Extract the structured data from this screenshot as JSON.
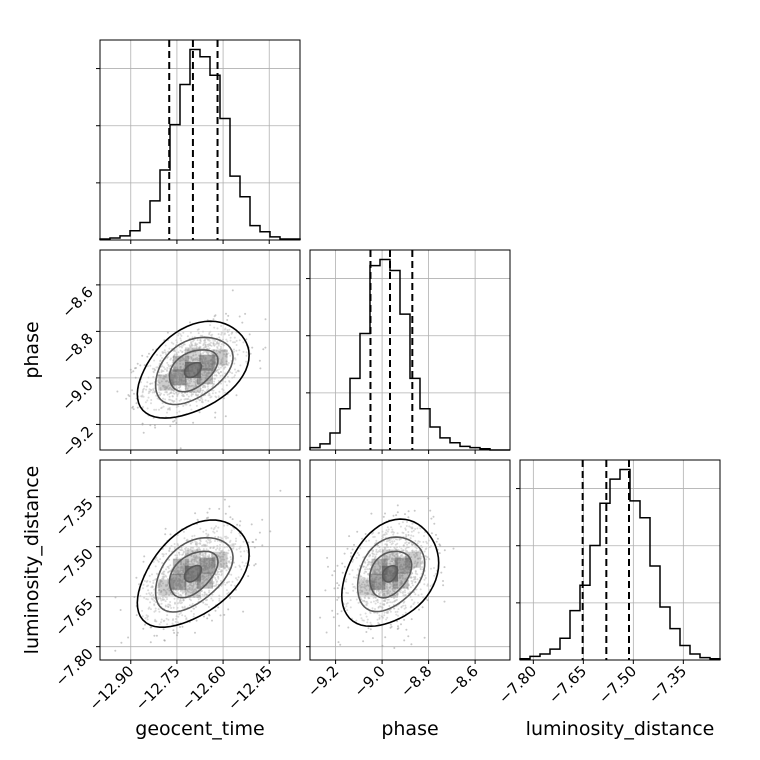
{
  "chart_data": {
    "type": "corner",
    "parameters": [
      "geocent_time",
      "phase",
      "luminosity_distance"
    ],
    "ranges": {
      "geocent_time": [
        -13.0,
        -12.35
      ],
      "phase": [
        -9.31,
        -8.45
      ],
      "luminosity_distance": [
        -7.84,
        -7.24
      ]
    },
    "ticks": {
      "geocent_time": [
        -12.9,
        -12.75,
        -12.6,
        -12.45
      ],
      "phase": [
        -9.2,
        -9.0,
        -8.8,
        -8.6
      ],
      "luminosity_distance": [
        -7.8,
        -7.65,
        -7.5,
        -7.35
      ]
    },
    "tick_labels": {
      "geocent_time": [
        "−12.90",
        "−12.75",
        "−12.60",
        "−12.45"
      ],
      "phase": [
        "−9.2",
        "−9.0",
        "−8.8",
        "−8.6"
      ],
      "luminosity_distance": [
        "−7.80",
        "−7.65",
        "−7.50",
        "−7.35"
      ]
    },
    "histograms": {
      "geocent_time": {
        "bin_start": -13.0,
        "bin_width": 0.0325,
        "counts": [
          1,
          2,
          4,
          9,
          17,
          38,
          68,
          112,
          151,
          185,
          178,
          160,
          118,
          62,
          42,
          14,
          8,
          3,
          1,
          1
        ],
        "quantiles": [
          -12.775,
          -12.698,
          -12.618
        ]
      },
      "phase": {
        "bin_start": -9.31,
        "bin_width": 0.043,
        "counts": [
          2,
          5,
          14,
          34,
          59,
          96,
          152,
          157,
          148,
          112,
          59,
          34,
          19,
          10,
          6,
          3,
          2,
          1,
          0,
          0
        ],
        "quantiles": [
          -9.05,
          -8.966,
          -8.87
        ]
      },
      "luminosity_distance": {
        "bin_start": -7.84,
        "bin_width": 0.03,
        "counts": [
          1,
          3,
          5,
          9,
          18,
          41,
          62,
          95,
          130,
          150,
          158,
          132,
          118,
          78,
          44,
          26,
          12,
          5,
          2,
          1
        ],
        "quantiles": [
          -7.652,
          -7.581,
          -7.513
        ]
      }
    },
    "correlations": {
      "phase_vs_geocent_time": 0.4,
      "luminosity_distance_vs_geocent_time": 0.45,
      "luminosity_distance_vs_phase": 0.3
    },
    "grid": true,
    "colors": {
      "hist": "#000000",
      "points": "#9a9a9a",
      "grid": "#b0b0b0"
    }
  }
}
